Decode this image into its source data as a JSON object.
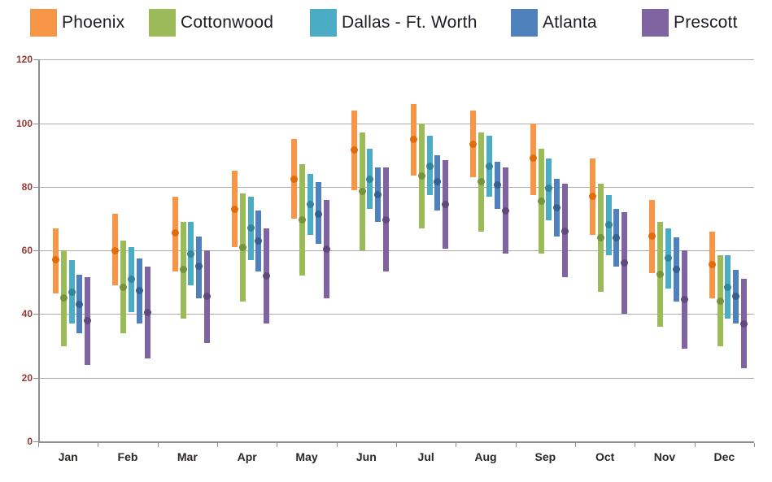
{
  "chart_data": {
    "type": "bar",
    "subtype": "high-low-range-with-mean-dot",
    "title": "",
    "xlabel": "",
    "ylabel": "",
    "ylim": [
      0,
      120
    ],
    "yticks": [
      0,
      20,
      40,
      60,
      80,
      100,
      120
    ],
    "grid": "horizontal",
    "legend_position": "top",
    "categories": [
      "Jan",
      "Feb",
      "Mar",
      "Apr",
      "May",
      "Jun",
      "Jul",
      "Aug",
      "Sep",
      "Oct",
      "Nov",
      "Dec"
    ],
    "series": [
      {
        "name": "Phoenix",
        "bar_color": "#F79646",
        "point_color": "#E26B0A",
        "high": [
          67,
          71.5,
          77,
          85,
          95,
          104,
          106,
          104,
          100,
          89,
          76,
          66
        ],
        "low": [
          46.5,
          49,
          53.5,
          61,
          70,
          79,
          83.5,
          83,
          77.5,
          65,
          53,
          45
        ],
        "mean": [
          57,
          60,
          65.5,
          73,
          82.5,
          91.5,
          95,
          93.5,
          89,
          77,
          64.5,
          55.5
        ]
      },
      {
        "name": "Cottonwood",
        "bar_color": "#9BBB59",
        "point_color": "#77933C",
        "high": [
          60,
          63,
          69,
          78,
          87,
          97,
          100,
          97,
          92,
          81,
          69,
          58.5
        ],
        "low": [
          30,
          34,
          38.5,
          44,
          52,
          60,
          67,
          66,
          59,
          47,
          36,
          30
        ],
        "mean": [
          45,
          48.5,
          54,
          61,
          69.5,
          78.5,
          83.5,
          81.5,
          75.5,
          64,
          52.5,
          44
        ]
      },
      {
        "name": "Dallas - Ft. Worth",
        "bar_color": "#4BACC6",
        "point_color": "#31859C",
        "high": [
          57,
          61,
          69,
          77,
          84,
          92,
          96,
          96,
          89,
          77.5,
          67,
          58.5
        ],
        "low": [
          37,
          40.5,
          49,
          57,
          65,
          73,
          77.5,
          77,
          69.5,
          58.5,
          48,
          38.5
        ],
        "mean": [
          47,
          51,
          59,
          67,
          74.5,
          82.5,
          86.5,
          86.5,
          79.5,
          68,
          57.5,
          48.5
        ]
      },
      {
        "name": "Atlanta",
        "bar_color": "#4F81BD",
        "point_color": "#376092",
        "high": [
          52.5,
          57.5,
          64.5,
          72.5,
          81.5,
          86,
          90,
          88,
          82.5,
          73,
          64,
          54
        ],
        "low": [
          34,
          37,
          45,
          53.5,
          62,
          69,
          72.5,
          73,
          64.5,
          55,
          44,
          37
        ],
        "mean": [
          43,
          47.5,
          55,
          63,
          71.5,
          77.5,
          81.5,
          80.5,
          73.5,
          64,
          54,
          45.5
        ]
      },
      {
        "name": "Prescott",
        "bar_color": "#8064A2",
        "point_color": "#604A7B",
        "high": [
          51.5,
          55,
          60,
          67,
          76,
          86,
          88.5,
          86,
          81,
          72,
          60,
          51
        ],
        "low": [
          24,
          26,
          31,
          37,
          45,
          53.5,
          60.5,
          59,
          51.5,
          40,
          29,
          23
        ],
        "mean": [
          38,
          40.5,
          45.5,
          52,
          60.5,
          69.5,
          74.5,
          72.5,
          66,
          56,
          44.5,
          37
        ]
      }
    ]
  }
}
